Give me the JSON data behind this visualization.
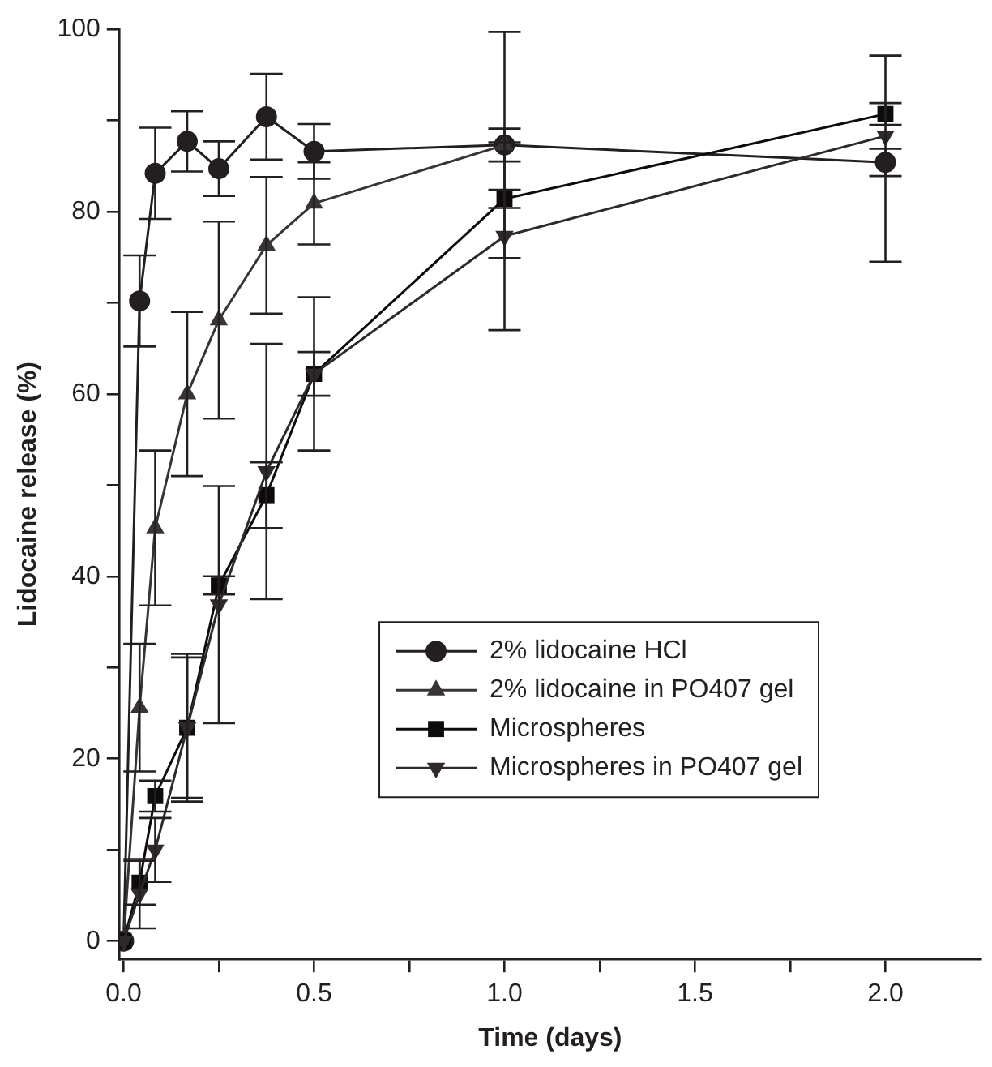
{
  "chart_data": {
    "type": "line",
    "xlabel": "Time (days)",
    "ylabel": "Lidocaine release (%)",
    "x": [
      0,
      0.042,
      0.083,
      0.167,
      0.25,
      0.375,
      0.5,
      1,
      2
    ],
    "xlim": [
      -0.01,
      2.25
    ],
    "xticks": [
      {
        "value": 0,
        "label": "0.0"
      },
      {
        "value": 0.25,
        "label": null
      },
      {
        "value": 0.5,
        "label": "0.5"
      },
      {
        "value": 0.75,
        "label": null
      },
      {
        "value": 1,
        "label": "1.0"
      },
      {
        "value": 1.25,
        "label": null
      },
      {
        "value": 1.5,
        "label": "1.5"
      },
      {
        "value": 1.75,
        "label": null
      },
      {
        "value": 2,
        "label": "2.0"
      }
    ],
    "ylim": [
      -2,
      100
    ],
    "yticks": [
      0,
      {
        "value": 10,
        "label": null
      },
      20,
      {
        "value": 30,
        "label": null
      },
      40,
      {
        "value": 50,
        "label": null
      },
      60,
      {
        "value": 70,
        "label": null
      },
      80,
      {
        "value": 90,
        "label": null
      },
      100
    ],
    "grid": false,
    "legend": "bottom right",
    "line_style": "solid",
    "series": [
      {
        "name": "2% lidocaine HCl",
        "color": "#231f20",
        "marker": "circle",
        "values": [
          0,
          70.2,
          84.2,
          87.7,
          84.7,
          90.4,
          86.6,
          87.3,
          85.4
        ],
        "errors": [
          null,
          5,
          5,
          3.3,
          3,
          4.7,
          3,
          1.8,
          1.5
        ]
      },
      {
        "name": "2% lidocaine in PO407 gel",
        "color": "#383434",
        "marker": "triangle",
        "x": [
          0,
          0.042,
          0.083,
          0.167,
          0.25,
          0.375,
          0.5,
          1
        ],
        "values": [
          0,
          25.6,
          45.3,
          60,
          68.1,
          76.3,
          80.9,
          87.3
        ],
        "errors": [
          null,
          7,
          8.5,
          9,
          10.8,
          7.5,
          4.5,
          12.4
        ]
      },
      {
        "name": "Microspheres",
        "color": "#0e0b0c",
        "marker": "square",
        "values": [
          0,
          6.4,
          15.9,
          23.4,
          39,
          48.9,
          62.2,
          81.4,
          90.7
        ],
        "errors": [
          null,
          2.4,
          1.7,
          8.1,
          1,
          3.6,
          2.4,
          1,
          1.2
        ]
      },
      {
        "name": "Microspheres in PO407 gel",
        "color": "#2e2a2b",
        "marker": "triangle-down",
        "values": [
          0,
          5.2,
          10,
          23.4,
          36.9,
          51.5,
          62.2,
          77.3,
          88.3
        ],
        "errors": [
          null,
          3.8,
          3.5,
          7.7,
          13,
          14,
          8.4,
          10.3,
          [
            74.5,
            97.1
          ]
        ]
      }
    ]
  }
}
